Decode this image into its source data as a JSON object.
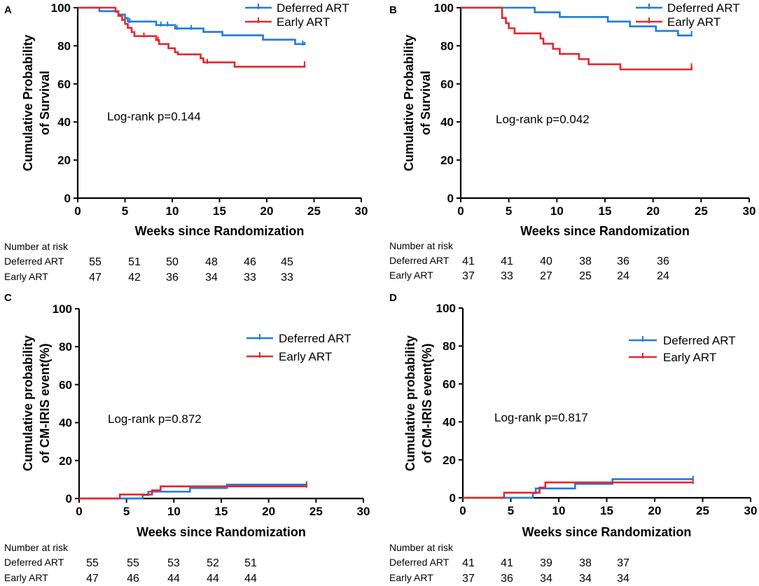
{
  "colors": {
    "deferred": "#1f7be0",
    "early": "#e8262a",
    "axis": "#000000"
  },
  "chart_data": [
    {
      "panel": "A",
      "type": "line",
      "subtype": "kaplan-meier",
      "ylabel_lines": [
        "Cumulative Probability",
        "of Survival"
      ],
      "xlabel": "Weeks since Randomization",
      "xlim": [
        0,
        30
      ],
      "ylim": [
        0,
        100
      ],
      "xticks": [
        "0",
        "5",
        "10",
        "15",
        "20",
        "25",
        "30"
      ],
      "yticks": [
        "0",
        "20",
        "40",
        "60",
        "80",
        "100"
      ],
      "annotation": "Log-rank p=0.144",
      "legend": [
        "Deferred ART",
        "Early ART"
      ],
      "legend_position": "top-right",
      "series": [
        {
          "name": "Deferred ART",
          "color_key": "deferred",
          "steps": [
            [
              0,
              100
            ],
            [
              2.3,
              98.2
            ],
            [
              4.3,
              96.4
            ],
            [
              5.0,
              94.5
            ],
            [
              5.3,
              92.7
            ],
            [
              8.3,
              90.9
            ],
            [
              10.3,
              89.1
            ],
            [
              13.3,
              87.3
            ],
            [
              15.3,
              85.5
            ],
            [
              19.6,
              83.2
            ],
            [
              23.0,
              80.9
            ],
            [
              24.0,
              82.0
            ]
          ],
          "censor": [
            5.5,
            8.8,
            9.5,
            10.5,
            12.0,
            23.8
          ]
        },
        {
          "name": "Early ART",
          "color_key": "early",
          "steps": [
            [
              0,
              100
            ],
            [
              4.0,
              97.9
            ],
            [
              4.3,
              95.7
            ],
            [
              4.7,
              93.6
            ],
            [
              5.0,
              91.5
            ],
            [
              5.3,
              89.4
            ],
            [
              5.7,
              87.2
            ],
            [
              6.0,
              85.1
            ],
            [
              8.3,
              83.0
            ],
            [
              8.6,
              80.9
            ],
            [
              9.6,
              78.7
            ],
            [
              10.3,
              76.6
            ],
            [
              10.6,
              75.5
            ],
            [
              13.0,
              73.4
            ],
            [
              13.3,
              71.3
            ],
            [
              16.6,
              69.0
            ],
            [
              24.0,
              70.0
            ]
          ],
          "censor": [
            7.0,
            8.5,
            13.7,
            24.0
          ]
        }
      ],
      "risk_table": {
        "title": "Number at risk",
        "rows": [
          {
            "label": "Deferred ART",
            "values": [
              "55",
              "51",
              "50",
              "48",
              "46",
              "45"
            ]
          },
          {
            "label": "Early ART",
            "values": [
              "47",
              "42",
              "36",
              "34",
              "33",
              "33"
            ]
          }
        ]
      }
    },
    {
      "panel": "B",
      "type": "line",
      "subtype": "kaplan-meier",
      "ylabel_lines": [
        "Cumulative Probability",
        "of Survival"
      ],
      "xlabel": "Weeks since Randomization",
      "xlim": [
        0,
        30
      ],
      "ylim": [
        0,
        100
      ],
      "xticks": [
        "0",
        "5",
        "10",
        "15",
        "20",
        "25",
        "30"
      ],
      "yticks": [
        "0",
        "20",
        "40",
        "60",
        "80",
        "100"
      ],
      "annotation": "Log-rank p=0.042",
      "legend": [
        "Deferred ART",
        "Early ART"
      ],
      "legend_position": "top-right",
      "series": [
        {
          "name": "Deferred ART",
          "color_key": "deferred",
          "steps": [
            [
              0,
              100
            ],
            [
              7.7,
              97.6
            ],
            [
              10.3,
              95.1
            ],
            [
              15.3,
              92.7
            ],
            [
              17.6,
              90.2
            ],
            [
              20.3,
              87.8
            ],
            [
              22.6,
              85.4
            ],
            [
              24.0,
              86.0
            ]
          ],
          "censor": [
            24.0
          ]
        },
        {
          "name": "Early ART",
          "color_key": "early",
          "steps": [
            [
              0,
              100
            ],
            [
              4.3,
              94.6
            ],
            [
              4.7,
              91.9
            ],
            [
              5.0,
              89.2
            ],
            [
              5.6,
              86.5
            ],
            [
              8.3,
              83.8
            ],
            [
              8.6,
              81.1
            ],
            [
              9.6,
              78.4
            ],
            [
              10.3,
              75.7
            ],
            [
              12.3,
              73.0
            ],
            [
              13.3,
              70.3
            ],
            [
              16.6,
              67.6
            ],
            [
              24.0,
              69.0
            ]
          ],
          "censor": [
            24.0
          ]
        }
      ],
      "risk_table": {
        "title": "Number at risk",
        "rows": [
          {
            "label": "Deferred ART",
            "values": [
              "41",
              "41",
              "40",
              "38",
              "36",
              "36"
            ]
          },
          {
            "label": "Early ART",
            "values": [
              "37",
              "33",
              "27",
              "25",
              "24",
              "24"
            ]
          }
        ]
      }
    },
    {
      "panel": "C",
      "type": "line",
      "subtype": "cumulative-incidence",
      "ylabel_lines": [
        "Cumulative probability",
        "of CM-IRIS event(%)"
      ],
      "xlabel": "Weeks since Randomization",
      "xlim": [
        0,
        30
      ],
      "ylim": [
        0,
        100
      ],
      "xticks": [
        "0",
        "5",
        "10",
        "15",
        "20",
        "25",
        "30"
      ],
      "yticks": [
        "0",
        "20",
        "40",
        "60",
        "80",
        "100"
      ],
      "annotation": "Log-rank p=0.872",
      "legend": [
        "Deferred ART",
        "Early ART"
      ],
      "legend_position": "right",
      "series": [
        {
          "name": "Deferred ART",
          "color_key": "deferred",
          "steps": [
            [
              0,
              0
            ],
            [
              6.7,
              1.8
            ],
            [
              7.3,
              3.6
            ],
            [
              11.7,
              5.5
            ],
            [
              15.6,
              7.3
            ],
            [
              24.0,
              7.3
            ]
          ],
          "censor": [
            24.0
          ]
        },
        {
          "name": "Early ART",
          "color_key": "early",
          "steps": [
            [
              0,
              0
            ],
            [
              4.3,
              2.1
            ],
            [
              7.7,
              4.3
            ],
            [
              8.6,
              6.4
            ],
            [
              24.0,
              6.4
            ]
          ],
          "censor": [
            24.0
          ]
        }
      ],
      "risk_table": {
        "title": "Number at risk",
        "rows": [
          {
            "label": "Deferred ART",
            "values": [
              "55",
              "55",
              "53",
              "52",
              "51"
            ]
          },
          {
            "label": "Early ART",
            "values": [
              "47",
              "46",
              "44",
              "44",
              "44"
            ]
          }
        ]
      }
    },
    {
      "panel": "D",
      "type": "line",
      "subtype": "cumulative-incidence",
      "ylabel_lines": [
        "Cumulative probability",
        "of CM-IRIS event(%)"
      ],
      "xlabel": "Weeks since Randomization",
      "xlim": [
        0,
        30
      ],
      "ylim": [
        0,
        100
      ],
      "xticks": [
        "0",
        "5",
        "10",
        "15",
        "20",
        "25",
        "30"
      ],
      "yticks": [
        "0",
        "20",
        "40",
        "60",
        "80",
        "100"
      ],
      "annotation": "Log-rank p=0.817",
      "legend": [
        "Deferred ART",
        "Early ART"
      ],
      "legend_position": "right",
      "series": [
        {
          "name": "Deferred ART",
          "color_key": "deferred",
          "steps": [
            [
              0,
              0
            ],
            [
              7.3,
              2.4
            ],
            [
              7.6,
              4.9
            ],
            [
              11.7,
              7.3
            ],
            [
              15.6,
              9.8
            ],
            [
              24.0,
              9.8
            ]
          ],
          "censor": [
            24.0
          ]
        },
        {
          "name": "Early ART",
          "color_key": "early",
          "steps": [
            [
              0,
              0
            ],
            [
              4.3,
              2.7
            ],
            [
              8.0,
              5.4
            ],
            [
              8.6,
              8.1
            ],
            [
              24.0,
              8.1
            ]
          ],
          "censor": [
            24.0
          ]
        }
      ],
      "risk_table": {
        "title": "Number at risk",
        "rows": [
          {
            "label": "Deferred ART",
            "values": [
              "41",
              "41",
              "39",
              "38",
              "37"
            ]
          },
          {
            "label": "Early ART",
            "values": [
              "37",
              "36",
              "34",
              "34",
              "34"
            ]
          }
        ]
      }
    }
  ]
}
